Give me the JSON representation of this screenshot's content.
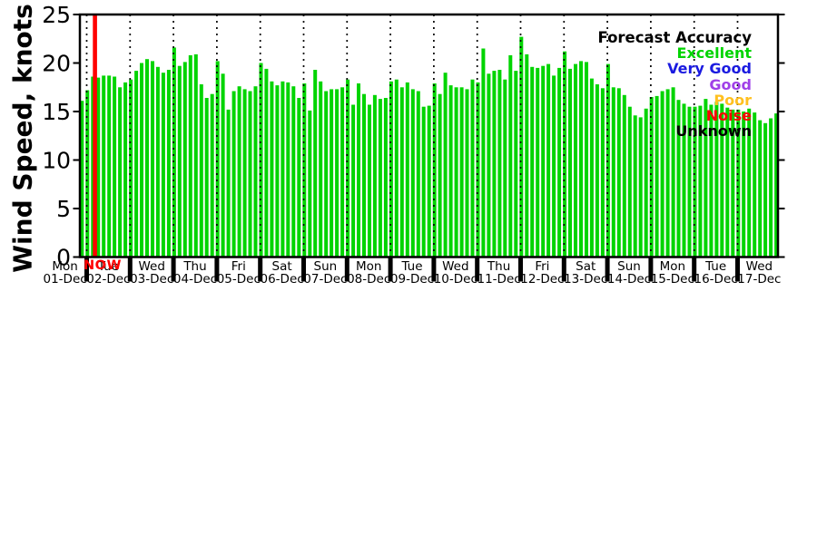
{
  "now_marker": {
    "label": "NOW",
    "color": "#ff0000"
  },
  "legend": {
    "title": "Forecast Accuracy",
    "title_color": "#000000",
    "entries": [
      {
        "label": "Excellent",
        "color": "#00d400"
      },
      {
        "label": "Very Good",
        "color": "#1a1ae0"
      },
      {
        "label": "Good",
        "color": "#a040e8"
      },
      {
        "label": "Poor",
        "color": "#ffc020"
      },
      {
        "label": "Noise",
        "color": "#ff0000"
      },
      {
        "label": "Unknown",
        "color": "#000000"
      }
    ]
  },
  "chart_data": {
    "type": "bar",
    "title": "",
    "ylabel": "Wind Speed, knots",
    "xlabel": "",
    "ylim": [
      0,
      25
    ],
    "yticks": [
      0,
      5,
      10,
      15,
      20,
      25
    ],
    "bar_color": "#00d400",
    "bar_unit": "knots",
    "sampling": "3-hourly wind speed forecast bars, 8 per day",
    "grid": "vertical dotted black gridlines at each day boundary",
    "legend_position": "top-right inside plot",
    "now_line": {
      "label": "NOW",
      "color": "#ff0000",
      "position": "early on Tue 02-Dec"
    },
    "days": [
      {
        "weekday": "Mon",
        "date": "01-Dec",
        "values": [
          16.1
        ]
      },
      {
        "weekday": "Tue",
        "date": "02-Dec",
        "values": [
          17.2,
          18.6,
          18.5,
          18.7,
          18.7,
          18.6,
          17.5,
          18.0
        ]
      },
      {
        "weekday": "Wed",
        "date": "03-Dec",
        "values": [
          18.3,
          19.2,
          20.0,
          20.4,
          20.2,
          19.6,
          19.0,
          19.3
        ]
      },
      {
        "weekday": "Thu",
        "date": "04-Dec",
        "values": [
          21.6,
          19.7,
          20.1,
          20.8,
          20.9,
          17.8,
          16.4,
          16.8
        ]
      },
      {
        "weekday": "Fri",
        "date": "05-Dec",
        "values": [
          20.2,
          18.9,
          15.2,
          17.1,
          17.6,
          17.3,
          17.1,
          17.6
        ]
      },
      {
        "weekday": "Sat",
        "date": "06-Dec",
        "values": [
          20.0,
          19.4,
          18.1,
          17.7,
          18.1,
          18.0,
          17.6,
          16.4
        ]
      },
      {
        "weekday": "Sun",
        "date": "07-Dec",
        "values": [
          17.9,
          15.1,
          19.3,
          18.1,
          17.1,
          17.3,
          17.3,
          17.5
        ]
      },
      {
        "weekday": "Mon",
        "date": "08-Dec",
        "values": [
          18.3,
          15.7,
          17.9,
          16.8,
          15.7,
          16.7,
          16.3,
          16.4
        ]
      },
      {
        "weekday": "Tue",
        "date": "09-Dec",
        "values": [
          18.1,
          18.3,
          17.5,
          18.0,
          17.3,
          17.1,
          15.5,
          15.6
        ]
      },
      {
        "weekday": "Wed",
        "date": "10-Dec",
        "values": [
          17.9,
          16.8,
          19.0,
          17.7,
          17.5,
          17.5,
          17.3,
          18.3
        ]
      },
      {
        "weekday": "Thu",
        "date": "11-Dec",
        "values": [
          18.0,
          21.5,
          18.9,
          19.2,
          19.3,
          18.3,
          20.8,
          19.2
        ]
      },
      {
        "weekday": "Fri",
        "date": "12-Dec",
        "values": [
          22.7,
          20.9,
          19.6,
          19.5,
          19.7,
          19.9,
          18.7,
          19.5
        ]
      },
      {
        "weekday": "Sat",
        "date": "13-Dec",
        "values": [
          21.2,
          19.4,
          19.9,
          20.2,
          20.1,
          18.4,
          17.8,
          17.4
        ]
      },
      {
        "weekday": "Sun",
        "date": "14-Dec",
        "values": [
          19.9,
          17.5,
          17.4,
          16.7,
          15.5,
          14.6,
          14.4,
          15.3
        ]
      },
      {
        "weekday": "Mon",
        "date": "15-Dec",
        "values": [
          16.5,
          16.6,
          17.1,
          17.3,
          17.5,
          16.2,
          15.8,
          15.5
        ]
      },
      {
        "weekday": "Tue",
        "date": "16-Dec",
        "values": [
          15.5,
          15.6,
          16.3,
          15.7,
          16.0,
          15.8,
          15.4,
          15.2
        ]
      },
      {
        "weekday": "Wed",
        "date": "17-Dec",
        "values": [
          15.2,
          15.0,
          15.3,
          14.9,
          14.1,
          13.8,
          14.3,
          14.8
        ]
      }
    ]
  }
}
